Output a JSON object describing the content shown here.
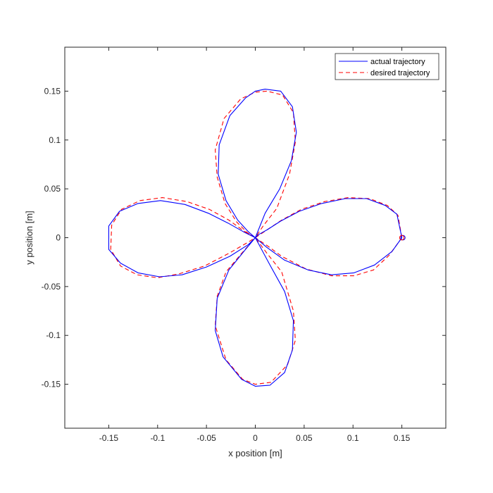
{
  "chart_data": {
    "type": "line",
    "title": "",
    "xlabel": "x position [m]",
    "ylabel": "y position [m]",
    "xlim": [
      -0.195,
      0.195
    ],
    "ylim": [
      -0.195,
      0.195
    ],
    "xticks": [
      -0.15,
      -0.1,
      -0.05,
      0,
      0.05,
      0.1,
      0.15
    ],
    "yticks": [
      -0.15,
      -0.1,
      -0.05,
      0,
      0.05,
      0.1,
      0.15
    ],
    "xtick_labels": [
      "-0.15",
      "-0.1",
      "-0.05",
      "0",
      "0.05",
      "0.1",
      "0.15"
    ],
    "ytick_labels": [
      "-0.15",
      "-0.1",
      "-0.05",
      "0",
      "0.05",
      "0.1",
      "0.15"
    ],
    "grid": false,
    "legend_position": "top-right",
    "series": [
      {
        "name": "actual trajectory",
        "color": "#0000ff",
        "style": "solid",
        "x": [
          0.15,
          0.145,
          0.133,
          0.114,
          0.092,
          0.068,
          0.045,
          0.026,
          0.012,
          0.003,
          0.0,
          0.01,
          0.025,
          0.037,
          0.042,
          0.038,
          0.026,
          0.01,
          0.0,
          -0.01,
          -0.026,
          -0.037,
          -0.038,
          -0.03,
          -0.018,
          -0.007,
          0.0,
          -0.007,
          -0.026,
          -0.05,
          -0.075,
          -0.098,
          -0.12,
          -0.138,
          -0.15,
          -0.15,
          -0.139,
          -0.12,
          -0.097,
          -0.072,
          -0.048,
          -0.028,
          -0.012,
          0.0,
          0.015,
          0.03,
          0.039,
          0.038,
          0.03,
          0.015,
          0.0,
          -0.014,
          -0.033,
          -0.041,
          -0.039,
          -0.027,
          -0.01,
          0.0,
          0.012,
          0.03,
          0.054,
          0.078,
          0.101,
          0.122,
          0.14,
          0.15
        ],
        "y": [
          0.0,
          0.024,
          0.033,
          0.04,
          0.04,
          0.035,
          0.027,
          0.017,
          0.008,
          0.003,
          0.0,
          0.025,
          0.05,
          0.079,
          0.108,
          0.134,
          0.15,
          0.152,
          0.15,
          0.143,
          0.125,
          0.095,
          0.065,
          0.038,
          0.018,
          0.006,
          0.0,
          -0.007,
          -0.019,
          -0.03,
          -0.038,
          -0.04,
          -0.036,
          -0.026,
          -0.012,
          0.012,
          0.027,
          0.035,
          0.038,
          0.034,
          0.025,
          0.015,
          0.006,
          0.0,
          -0.028,
          -0.055,
          -0.085,
          -0.115,
          -0.138,
          -0.151,
          -0.152,
          -0.145,
          -0.122,
          -0.095,
          -0.062,
          -0.033,
          -0.012,
          0.0,
          -0.01,
          -0.023,
          -0.033,
          -0.038,
          -0.036,
          -0.028,
          -0.014,
          0.0
        ]
      },
      {
        "name": "desired trajectory",
        "color": "#ff0000",
        "style": "dashed",
        "x": [
          0.15,
          0.146,
          0.135,
          0.117,
          0.095,
          0.071,
          0.047,
          0.027,
          0.012,
          0.003,
          0.0,
          0.008,
          0.022,
          0.035,
          0.041,
          0.039,
          0.028,
          0.012,
          0.0,
          -0.015,
          -0.032,
          -0.041,
          -0.039,
          -0.031,
          -0.019,
          -0.008,
          0.0,
          -0.008,
          -0.027,
          -0.052,
          -0.078,
          -0.1,
          -0.121,
          -0.138,
          -0.148,
          -0.147,
          -0.137,
          -0.118,
          -0.095,
          -0.07,
          -0.047,
          -0.027,
          -0.012,
          0.0,
          0.012,
          0.027,
          0.039,
          0.041,
          0.033,
          0.016,
          0.0,
          -0.013,
          -0.03,
          -0.041,
          -0.039,
          -0.03,
          -0.014,
          0.0,
          0.012,
          0.027,
          0.052,
          0.078,
          0.101,
          0.121,
          0.137,
          0.15
        ],
        "y": [
          0.0,
          0.023,
          0.033,
          0.04,
          0.041,
          0.037,
          0.029,
          0.018,
          0.008,
          0.002,
          0.0,
          0.012,
          0.03,
          0.065,
          0.098,
          0.128,
          0.146,
          0.15,
          0.149,
          0.142,
          0.122,
          0.09,
          0.062,
          0.035,
          0.016,
          0.005,
          0.0,
          -0.005,
          -0.016,
          -0.029,
          -0.037,
          -0.041,
          -0.038,
          -0.029,
          -0.012,
          0.013,
          0.029,
          0.038,
          0.041,
          0.037,
          0.029,
          0.018,
          0.007,
          0.0,
          -0.016,
          -0.035,
          -0.075,
          -0.105,
          -0.13,
          -0.148,
          -0.15,
          -0.145,
          -0.125,
          -0.09,
          -0.06,
          -0.035,
          -0.016,
          0.0,
          -0.008,
          -0.019,
          -0.032,
          -0.039,
          -0.039,
          -0.033,
          -0.018,
          0.0
        ]
      }
    ],
    "start_marker": {
      "x": 0.15,
      "y": 0.0,
      "colors": [
        "#0000ff",
        "#ff0000"
      ]
    }
  }
}
